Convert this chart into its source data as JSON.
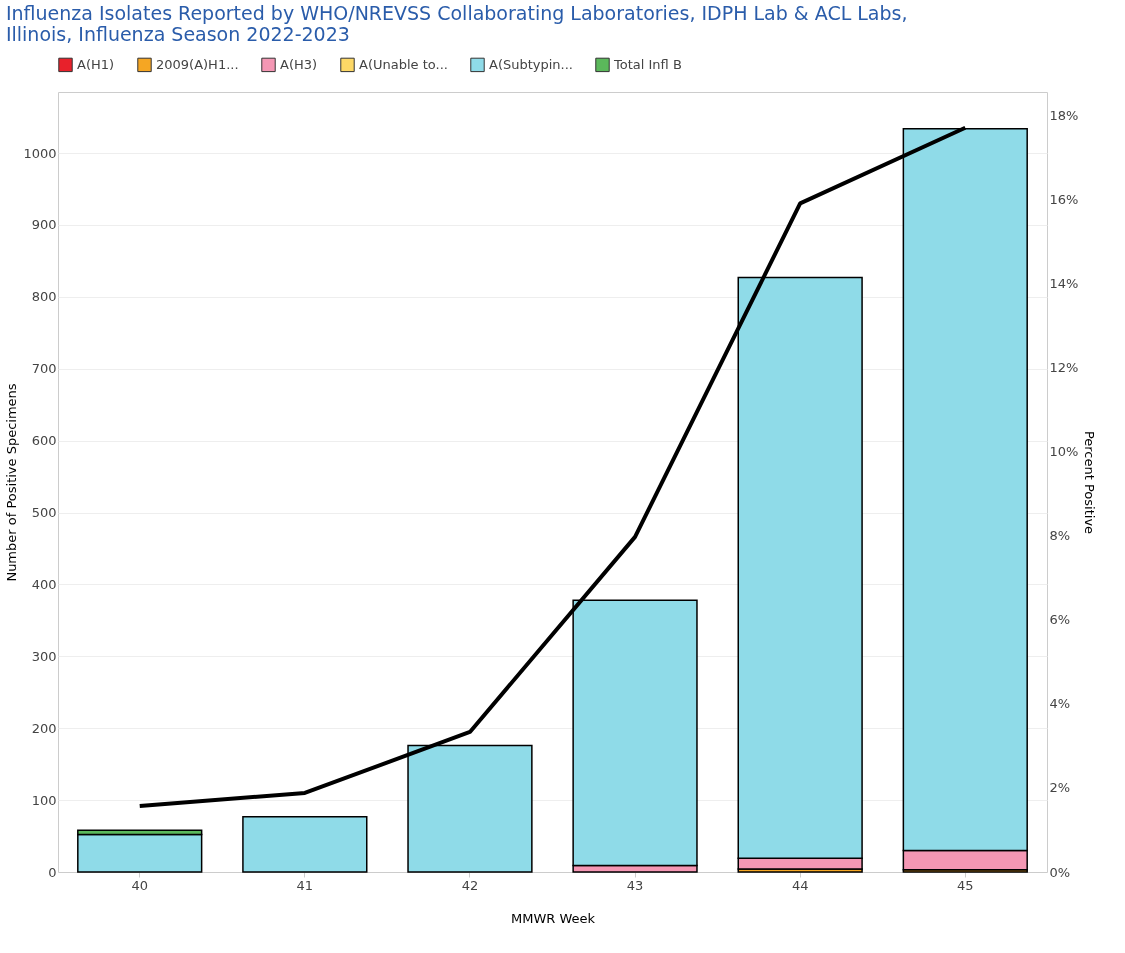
{
  "chart_data": {
    "type": "bar",
    "stacked": true,
    "title": [
      "Influenza Isolates Reported by WHO/NREVSS Collaborating Laboratories, IDPH Lab & ACL Labs,",
      "Illinois, Influenza Season 2022-2023"
    ],
    "xlabel": "MMWR Week",
    "ylabel": "Number of Positive Specimens",
    "y2label": "Percent Positive",
    "categories": [
      "40",
      "41",
      "42",
      "43",
      "44",
      "45"
    ],
    "series": [
      {
        "name": "A(H1)",
        "color": "#e8212b",
        "values": [
          null,
          null,
          null,
          null,
          null,
          null
        ]
      },
      {
        "name": "2009(A)H1...",
        "color": "#f5a623",
        "values": [
          null,
          null,
          null,
          null,
          4,
          3
        ]
      },
      {
        "name": "A(H3)",
        "color": "#f497b4",
        "values": [
          null,
          null,
          null,
          9,
          15,
          27
        ]
      },
      {
        "name": "A(Unable to...",
        "color": "#fdd866",
        "values": [
          null,
          null,
          null,
          null,
          null,
          null
        ]
      },
      {
        "name": "A(Subtypin...",
        "color": "#8fdbe8",
        "values": [
          52,
          77,
          176,
          369,
          808,
          1004
        ]
      },
      {
        "name": "Total Infl B",
        "color": "#5bb85b",
        "values": [
          6,
          null,
          null,
          null,
          null,
          null
        ]
      },
      {
        "type": "line",
        "axis": "y2",
        "color": "#000000",
        "values": [
          1.57,
          1.88,
          3.33,
          7.97,
          15.9,
          17.7
        ]
      }
    ],
    "ylim": [
      0,
      1085
    ],
    "yticks": [
      0,
      100,
      200,
      300,
      400,
      500,
      600,
      700,
      800,
      900,
      1000
    ],
    "y2lim": [
      0,
      18.55
    ],
    "y2ticks": [
      {
        "value": 0,
        "label": "0%"
      },
      {
        "value": 2,
        "label": "2%"
      },
      {
        "value": 4,
        "label": "4%"
      },
      {
        "value": 6,
        "label": "6%"
      },
      {
        "value": 8,
        "label": "8%"
      },
      {
        "value": 10,
        "label": "10%"
      },
      {
        "value": 12,
        "label": "12%"
      },
      {
        "value": 14,
        "label": "14%"
      },
      {
        "value": 16,
        "label": "16%"
      },
      {
        "value": 18,
        "label": "18%"
      }
    ],
    "grid": "y",
    "legend": "top"
  }
}
